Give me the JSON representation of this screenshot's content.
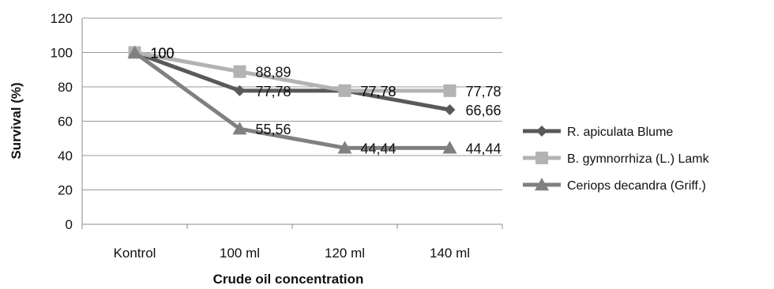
{
  "chart_data": {
    "type": "line",
    "categories": [
      "Kontrol",
      "100 ml",
      "120 ml",
      "140 ml"
    ],
    "xlabel": "Crude oil concentration",
    "ylabel": "Survival  (%)",
    "ylim": [
      0,
      120
    ],
    "yticks": [
      0,
      20,
      40,
      60,
      80,
      100,
      120
    ],
    "ytick_labels": [
      "0",
      "20",
      "40",
      "60",
      "80",
      "100",
      "120"
    ],
    "grid": true,
    "legend_position": "right",
    "series": [
      {
        "name": "R.  apiculata Blume",
        "values": [
          100,
          77.78,
          77.78,
          66.66
        ],
        "labels": [
          "100",
          "77,78",
          "77,78",
          "66,66"
        ],
        "marker": "diamond",
        "color": "#595959"
      },
      {
        "name": "B. gymnorrhiza (L.) Lamk",
        "values": [
          100,
          88.89,
          77.78,
          77.78
        ],
        "labels": [
          "100",
          "88,89",
          "77,78",
          "77,78"
        ],
        "marker": "square",
        "color": "#b3b3b3"
      },
      {
        "name": "Ceriops decandra (Griff.)",
        "values": [
          100,
          55.56,
          44.44,
          44.44
        ],
        "labels": [
          "100",
          "55,56",
          "44,44",
          "44,44"
        ],
        "marker": "triangle",
        "color": "#808080"
      }
    ]
  }
}
